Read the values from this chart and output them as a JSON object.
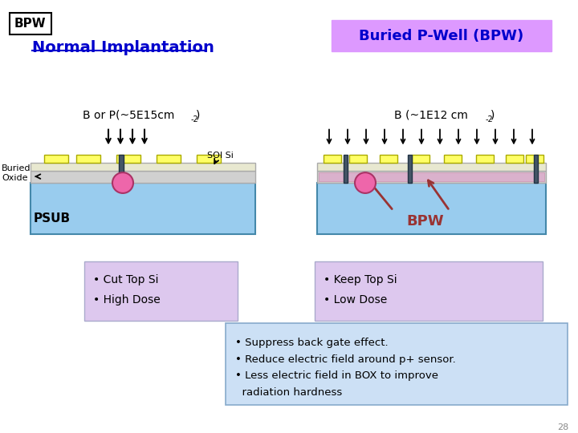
{
  "title_bpw": "BPW",
  "left_title": "Normal Implantation",
  "right_title": "Buried P-Well (BPW)",
  "left_dose_label": "B or P(~5E15cm",
  "left_dose_super": "-2",
  "right_dose_label": "B (~1E12 cm",
  "right_dose_super": "-2",
  "right_label": "BPW",
  "bullet_left": [
    "• Cut Top Si",
    "• High Dose"
  ],
  "bullet_right": [
    "• Keep Top Si",
    "• Low Dose"
  ],
  "bullet_bottom": [
    "• Suppress back gate effect.",
    "• Reduce electric field around p+ sensor.",
    "• Less electric field in BOX to improve\n  radiation hardness"
  ],
  "page_num": "28",
  "bg_color": "#ffffff",
  "left_title_color": "#0000cc",
  "right_title_color": "#0000cc",
  "right_title_bg": "#dd99ff",
  "bpw_label_color": "#993333",
  "left_box_bg": "#ddc8ee",
  "right_box_bg": "#ddc8ee",
  "bottom_box_bg": "#cce0f5",
  "silicon_color": "#99ccee",
  "yellow_color": "#ffff66",
  "pink_circle": "#ee66aa"
}
